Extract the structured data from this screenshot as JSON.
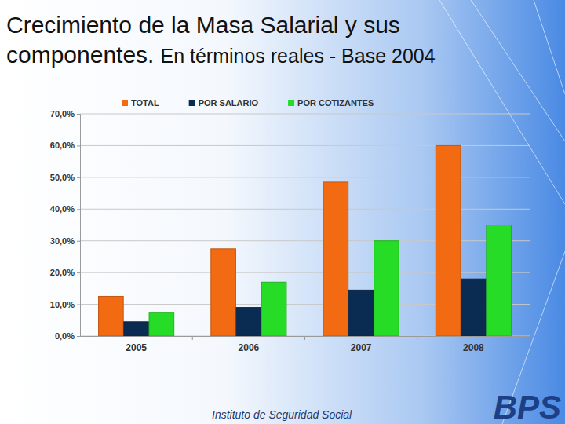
{
  "chart_data": {
    "type": "bar",
    "title": "Crecimiento de la Masa Salarial y sus componentes.",
    "subtitle": "En términos reales -  Base 2004",
    "annotations": [
      "Instituto de Seguridad Social",
      "BPS"
    ],
    "categories": [
      "2005",
      "2006",
      "2007",
      "2008"
    ],
    "series": [
      {
        "name": "TOTAL",
        "color": "#f26b12",
        "values": [
          12.5,
          27.5,
          48.5,
          60
        ]
      },
      {
        "name": "POR SALARIO",
        "color": "#0b2c52",
        "values": [
          4.5,
          9,
          14.5,
          18
        ]
      },
      {
        "name": "POR COTIZANTES",
        "color": "#26dc26",
        "values": [
          7.5,
          17,
          30,
          35
        ]
      }
    ],
    "ylim": [
      0,
      70
    ],
    "yticks": [
      {
        "value": 0,
        "label": "0,0%"
      },
      {
        "value": 10,
        "label": "10,0%"
      },
      {
        "value": 20,
        "label": "20,0%"
      },
      {
        "value": 30,
        "label": "30,0%"
      },
      {
        "value": 40,
        "label": "40,0%"
      },
      {
        "value": 50,
        "label": "50,0%"
      },
      {
        "value": 60,
        "label": "60,0%"
      },
      {
        "value": 70,
        "label": "70,0%"
      }
    ],
    "grid": true,
    "legend": "top"
  }
}
